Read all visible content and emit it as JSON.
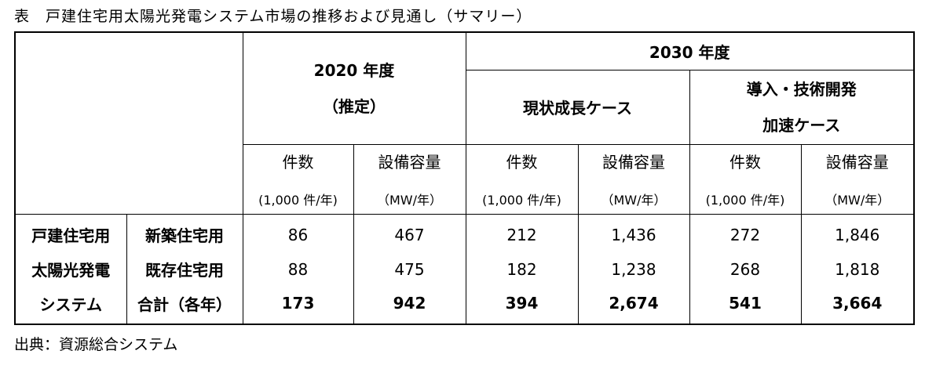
{
  "title": "表　戸建住宅用太陽光発電システム市場の推移および見通し（サマリー）",
  "table": {
    "year_2020": "2020 年度",
    "year_2020_note": "（推定）",
    "year_2030": "2030 年度",
    "case_current": "現状成長ケース",
    "case_accelerated": [
      "導入・技術開発",
      "加速ケース"
    ],
    "columns": [
      {
        "label": "件数",
        "unit": "(1,000 件/年)"
      },
      {
        "label": "設備容量",
        "unit": "（MW/年）"
      },
      {
        "label": "件数",
        "unit": "(1,000 件/年)"
      },
      {
        "label": "設備容量",
        "unit": "（MW/年）"
      },
      {
        "label": "件数",
        "unit": "(1,000 件/年)"
      },
      {
        "label": "設備容量",
        "unit": "（MW/年）"
      }
    ],
    "row_group": [
      "戸建住宅用",
      "太陽光発電",
      "システム"
    ],
    "rows": [
      {
        "label": "新築住宅用",
        "values": [
          "86",
          "467",
          "212",
          "1,436",
          "272",
          "1,846"
        ]
      },
      {
        "label": "既存住宅用",
        "values": [
          "88",
          "475",
          "182",
          "1,238",
          "268",
          "1,818"
        ]
      },
      {
        "label": "合計（各年）",
        "values": [
          "173",
          "942",
          "394",
          "2,674",
          "541",
          "3,664"
        ]
      }
    ]
  },
  "source": "出典：資源総合システム"
}
